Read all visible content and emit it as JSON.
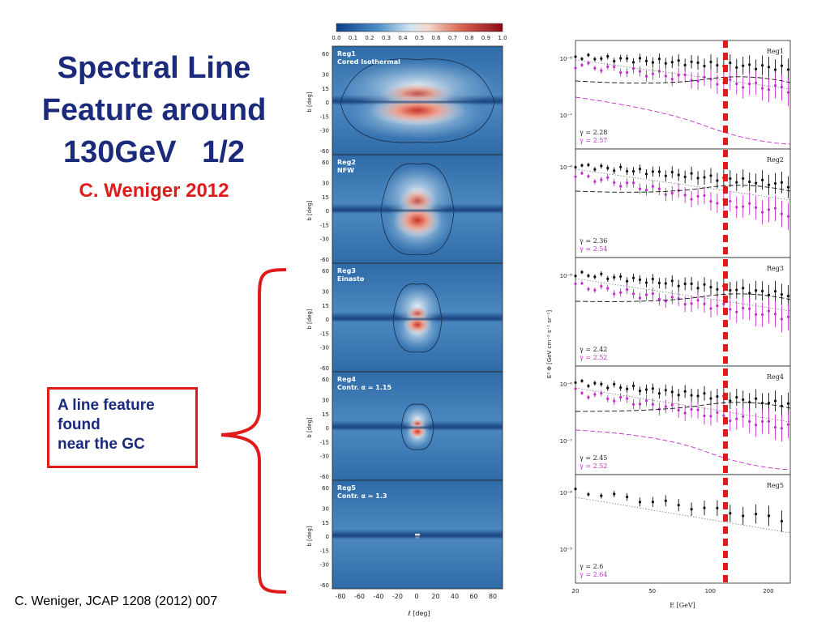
{
  "slide": {
    "title_lines": [
      "Spectral Line",
      "Feature around",
      "130GeV   1/2"
    ],
    "author": "C. Weniger 2012",
    "callout_lines": [
      "A line feature",
      "found",
      "near the GC"
    ],
    "citation": "C. Weniger, JCAP 1208 (2012) 007"
  },
  "maps": {
    "colorbar_ticks": [
      "0.0",
      "0.1",
      "0.2",
      "0.3",
      "0.4",
      "0.5",
      "0.6",
      "0.7",
      "0.8",
      "0.9",
      "1.0"
    ],
    "ylabel": "b [deg]",
    "xlabel": "ℓ [deg]",
    "xticks": [
      "-80",
      "-60",
      "-40",
      "-20",
      "0",
      "20",
      "40",
      "60",
      "80"
    ],
    "yticks": [
      "60",
      "30",
      "15",
      "0",
      "-15",
      "-30",
      "-60"
    ],
    "panels": [
      {
        "name": "Reg1",
        "profile": "Cored Isothermal"
      },
      {
        "name": "Reg2",
        "profile": "NFW"
      },
      {
        "name": "Reg3",
        "profile": "Einasto"
      },
      {
        "name": "Reg4",
        "profile": "Contr. α = 1.15"
      },
      {
        "name": "Reg5",
        "profile": "Contr. α = 1.3"
      }
    ]
  },
  "spectra": {
    "ylabel": "E² Φ [GeV cm⁻² s⁻¹ sr⁻¹]",
    "xlabel": "E [GeV]",
    "xticks": [
      "20",
      "50",
      "100",
      "200"
    ],
    "colors": {
      "black_series": "#111111",
      "magenta_series": "#c030c8",
      "line_marker": "#e01b1b"
    },
    "panels": [
      {
        "name": "Reg1",
        "gamma_black": "γ = 2.28",
        "gamma_magenta": "γ = 2.57",
        "yticks": [
          "10⁻⁶",
          "10⁻⁷"
        ]
      },
      {
        "name": "Reg2",
        "gamma_black": "γ = 2.36",
        "gamma_magenta": "γ = 2.54",
        "yticks": [
          "10⁻⁶"
        ]
      },
      {
        "name": "Reg3",
        "gamma_black": "γ = 2.42",
        "gamma_magenta": "γ = 2.52",
        "yticks": [
          "10⁻⁶"
        ]
      },
      {
        "name": "Reg4",
        "gamma_black": "γ = 2.45",
        "gamma_magenta": "γ = 2.52",
        "yticks": [
          "10⁻⁶",
          "10⁻⁷"
        ]
      },
      {
        "name": "Reg5",
        "gamma_black": "γ = 2.6",
        "gamma_magenta": "γ = 2.64",
        "yticks": [
          "10⁻⁴",
          "10⁻⁵"
        ]
      }
    ]
  }
}
